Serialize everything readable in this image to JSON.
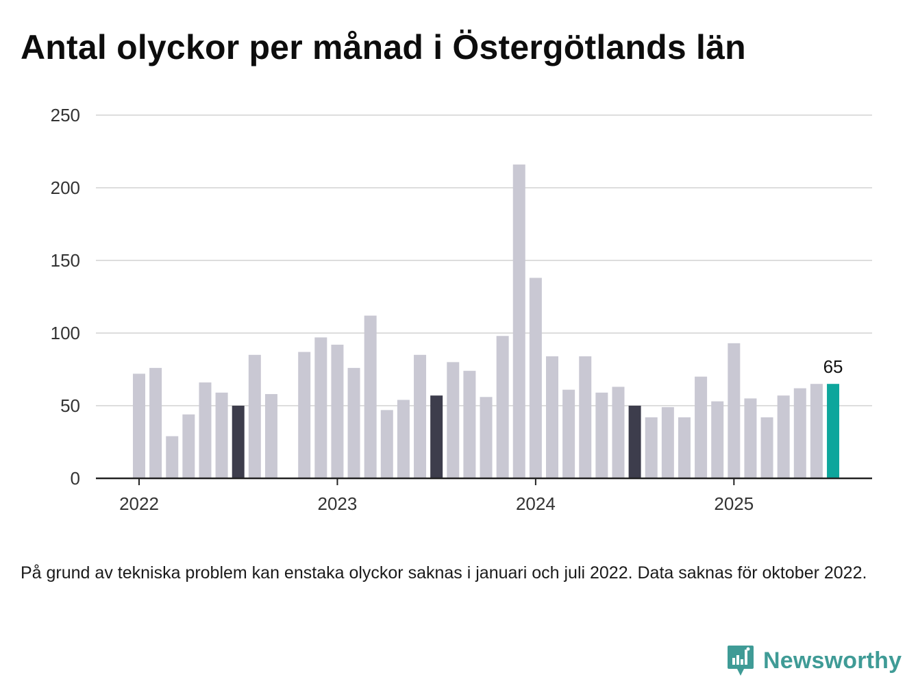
{
  "title": "Antal olyckor per månad i Östergötlands län",
  "note": "På grund av tekniska problem kan enstaka olyckor saknas i januari och juli 2022. Data saknas för oktober 2022.",
  "brand": {
    "name": "Newsworthy",
    "icon": "newsworthy-logo-icon"
  },
  "colors": {
    "bar": "#c9c8d3",
    "july_bar": "#3d3d4c",
    "latest_bar": "#0da69c",
    "grid": "#dddddd",
    "axis": "#222222"
  },
  "chart_data": {
    "type": "bar",
    "title": "Antal olyckor per månad i Östergötlands län",
    "xlabel": "",
    "ylabel": "",
    "ylim": [
      0,
      250
    ],
    "yticks": [
      "0",
      "50",
      "100",
      "150",
      "200",
      "250"
    ],
    "xticks": [
      "2022",
      "2023",
      "2024",
      "2025"
    ],
    "grid": true,
    "categories": [
      "2022-01",
      "2022-02",
      "2022-03",
      "2022-04",
      "2022-05",
      "2022-06",
      "2022-07",
      "2022-08",
      "2022-09",
      "2022-10",
      "2022-11",
      "2022-12",
      "2023-01",
      "2023-02",
      "2023-03",
      "2023-04",
      "2023-05",
      "2023-06",
      "2023-07",
      "2023-08",
      "2023-09",
      "2023-10",
      "2023-11",
      "2023-12",
      "2024-01",
      "2024-02",
      "2024-03",
      "2024-04",
      "2024-05",
      "2024-06",
      "2024-07",
      "2024-08",
      "2024-09",
      "2024-10",
      "2024-11",
      "2024-12",
      "2025-01",
      "2025-02",
      "2025-03",
      "2025-04",
      "2025-05",
      "2025-06",
      "2025-07"
    ],
    "values": [
      72,
      76,
      29,
      44,
      66,
      59,
      50,
      85,
      58,
      null,
      87,
      97,
      92,
      76,
      112,
      47,
      54,
      85,
      57,
      80,
      74,
      56,
      98,
      216,
      138,
      84,
      61,
      84,
      59,
      63,
      50,
      42,
      49,
      42,
      70,
      53,
      93,
      55,
      42,
      57,
      62,
      65,
      65
    ],
    "highlight_months": [
      "2022-07",
      "2023-07",
      "2024-07"
    ],
    "latest": {
      "category": "2025-07",
      "label": "65"
    }
  }
}
